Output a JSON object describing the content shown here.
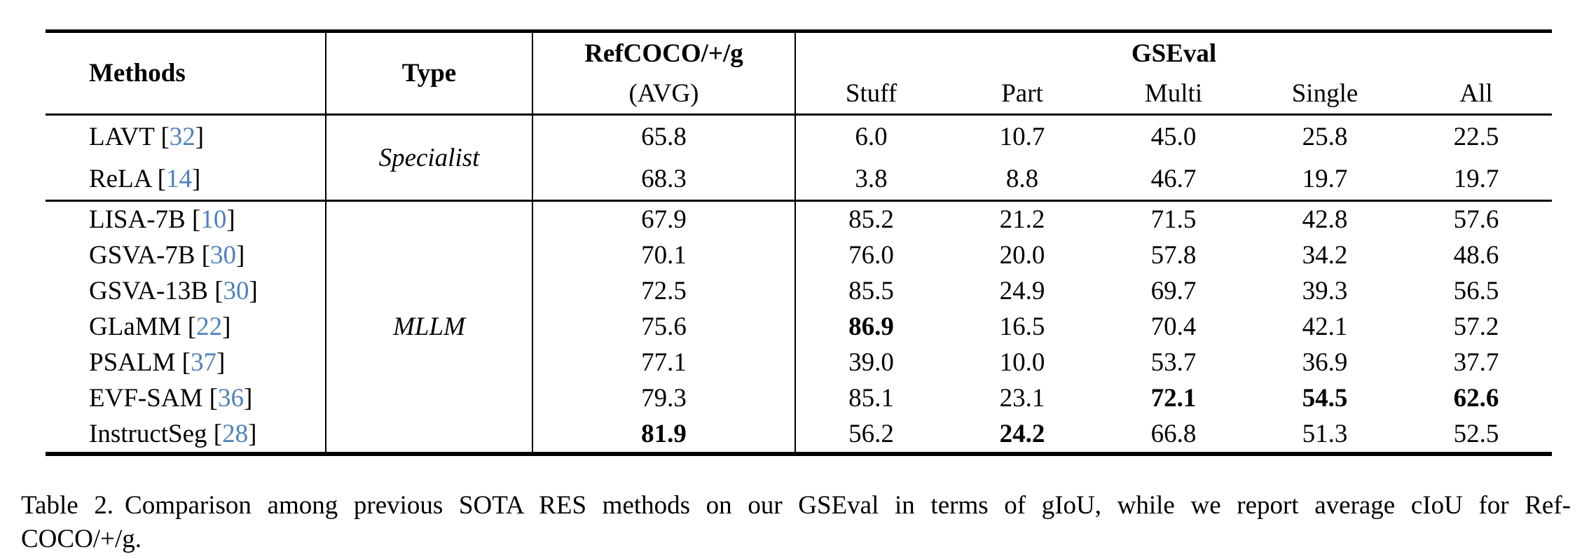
{
  "table": {
    "bracket_open": "[",
    "bracket_close": "]",
    "header": {
      "methods": "Methods",
      "type": "Type",
      "refcoco_line1": "RefCOCO/+/g",
      "refcoco_line2": "(AVG)",
      "gseval": "GSEval",
      "sub": [
        "Stuff",
        "Part",
        "Multi",
        "Single",
        "All"
      ]
    },
    "groups": [
      {
        "type_label": "Specialist",
        "rows": [
          {
            "method": "LAVT",
            "cite": "32",
            "values": [
              "65.8",
              "6.0",
              "10.7",
              "45.0",
              "25.8",
              "22.5"
            ],
            "bold_indices": []
          },
          {
            "method": "ReLA",
            "cite": "14",
            "values": [
              "68.3",
              "3.8",
              "8.8",
              "46.7",
              "19.7",
              "19.7"
            ],
            "bold_indices": []
          }
        ]
      },
      {
        "type_label": "MLLM",
        "rows": [
          {
            "method": "LISA-7B",
            "cite": "10",
            "values": [
              "67.9",
              "85.2",
              "21.2",
              "71.5",
              "42.8",
              "57.6"
            ],
            "bold_indices": []
          },
          {
            "method": "GSVA-7B",
            "cite": "30",
            "values": [
              "70.1",
              "76.0",
              "20.0",
              "57.8",
              "34.2",
              "48.6"
            ],
            "bold_indices": []
          },
          {
            "method": "GSVA-13B",
            "cite": "30",
            "values": [
              "72.5",
              "85.5",
              "24.9",
              "69.7",
              "39.3",
              "56.5"
            ],
            "bold_indices": []
          },
          {
            "method": "GLaMM",
            "cite": "22",
            "values": [
              "75.6",
              "86.9",
              "16.5",
              "70.4",
              "42.1",
              "57.2"
            ],
            "bold_indices": [
              1
            ]
          },
          {
            "method": "PSALM",
            "cite": "37",
            "values": [
              "77.1",
              "39.0",
              "10.0",
              "53.7",
              "36.9",
              "37.7"
            ],
            "bold_indices": []
          },
          {
            "method": "EVF-SAM",
            "cite": "36",
            "values": [
              "79.3",
              "85.1",
              "23.1",
              "72.1",
              "54.5",
              "62.6"
            ],
            "bold_indices": [
              3,
              4,
              5
            ]
          },
          {
            "method": "InstructSeg",
            "cite": "28",
            "values": [
              "81.9",
              "56.2",
              "24.2",
              "66.8",
              "51.3",
              "52.5"
            ],
            "bold_indices": [
              0,
              2
            ]
          }
        ]
      }
    ]
  },
  "caption": {
    "label": "Table 2.",
    "line1_rest": "Comparison among previous SOTA RES methods on our GSEval in terms of gIoU, while we report average cIoU for Ref-",
    "line2": "COCO/+/g."
  },
  "colors": {
    "citation_blue": "#4f81bd",
    "rule_black": "#000000"
  }
}
